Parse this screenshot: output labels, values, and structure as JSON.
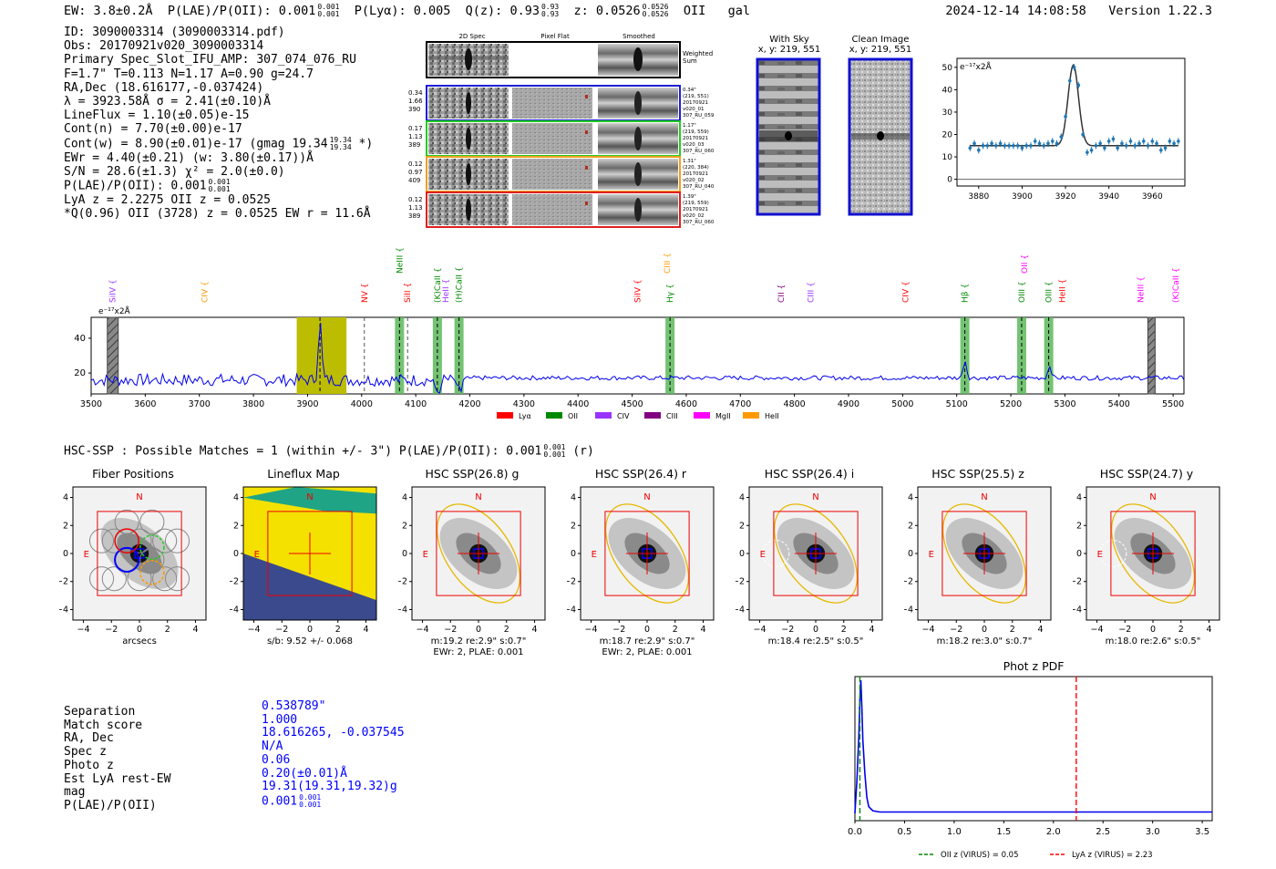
{
  "header": {
    "ew": "EW: 3.8±0.2Å",
    "plae_label": "P(LAE)/P(OII): 0.001",
    "plae_hi": "0.001",
    "plae_lo": "0.001",
    "plya": "P(Lyα): 0.005",
    "qz_label": "Q(z): 0.93",
    "qz_hi": "0.93",
    "qz_lo": "0.93",
    "z_label": "z: 0.0526",
    "z_hi": "0.0526",
    "z_lo": "0.0526",
    "z_line": "OII",
    "z_type": "gal",
    "timestamp": "2024-12-14 14:08:58",
    "version": "Version 1.22.3"
  },
  "info": {
    "id": "ID: 3090003314 (3090003314.pdf)",
    "obs": "Obs: 20170921v020_3090003314",
    "primary": "Primary Spec_Slot_IFU_AMP: 307_074_076_RU",
    "fitparams": "F=1.7\"  T=0.113  N=1.17  A=0.90  g=24.7",
    "radec": "RA,Dec (18.616177,-0.037424)",
    "lambda": "λ = 3923.58Å  σ = 2.41(±0.10)Å",
    "lineflux": "LineFlux = 1.10(±0.05)e-15",
    "contn": "Cont(n) = 7.70(±0.00)e-17",
    "contw": "Cont(w) = 8.90(±0.01)e-17 (gmag 19.34",
    "contw_hi": "19.34",
    "contw_lo": "19.34",
    "contw_end": "*)",
    "ewr": "EWr = 4.40(±0.21) (w: 3.80(±0.17))Å",
    "sn": "S/N = 28.6(±1.3)  χ² = 2.0(±0.0)",
    "plae": "P(LAE)/P(OII): 0.001",
    "plae_hi": "0.001",
    "plae_lo": "0.001",
    "lya_z": "LyA z = 2.2275  OII z = 0.0525",
    "q_line": "*Q(0.96) OII (3728) z = 0.0525  EW r = 11.6Å"
  },
  "spec2d": {
    "headers": [
      "2D Spec",
      "Pixel Flat",
      "Smoothed"
    ],
    "weighted_sum": [
      "Weighted",
      "Sum"
    ],
    "rows": [
      {
        "left": [
          "0.34",
          "1.66",
          "390"
        ],
        "right": [
          "0.34\"",
          "(219, 551)",
          "20170921",
          "v020_01",
          "307_RU_059"
        ],
        "color": "#1f1fd6"
      },
      {
        "left": [
          "0.17",
          "1.13",
          "389"
        ],
        "right": [
          "1.17\"",
          "(219, 559)",
          "20170921",
          "v020_03",
          "307_RU_060"
        ],
        "color": "#22cc22"
      },
      {
        "left": [
          "0.12",
          "0.97",
          "409"
        ],
        "right": [
          "1.31\"",
          "(220, 384)",
          "20170921",
          "v020_02",
          "307_RU_040"
        ],
        "color": "#f0a020"
      },
      {
        "left": [
          "0.12",
          "1.13",
          "389"
        ],
        "right": [
          "1.39\"",
          "(219, 559)",
          "20170921",
          "v020_02",
          "307_RU_060"
        ],
        "color": "#e02020"
      }
    ]
  },
  "sky": {
    "with_sky_title": "With Sky",
    "with_sky_xy": "x, y: 219, 551",
    "clean_title": "Clean Image",
    "clean_xy": "x, y: 219, 551"
  },
  "hsc": {
    "title": "HSC-SSP : Possible Matches = 1 (within +/- 3\")  P(LAE)/P(OII): 0.001",
    "plae_hi": "0.001",
    "plae_lo": "0.001",
    "suffix": "(r)"
  },
  "thumbnails": [
    {
      "title": "Fiber Positions",
      "caption1": "arcsecs",
      "caption2": ""
    },
    {
      "title": "Lineflux Map",
      "caption1": "s/b: 9.52 +/- 0.068",
      "caption2": ""
    },
    {
      "title": "HSC SSP(26.8) g",
      "caption1": "m:19.2  re:2.9\"  s:0.7\"",
      "caption2": "EWr: 2, PLAE: 0.001"
    },
    {
      "title": "HSC SSP(26.4) r",
      "caption1": "m:18.7  re:2.9\"  s:0.7\"",
      "caption2": "EWr: 2, PLAE: 0.001"
    },
    {
      "title": "HSC SSP(26.4) i",
      "caption1": "m:18.4  re:2.5\"  s:0.5\"",
      "caption2": ""
    },
    {
      "title": "HSC SSP(25.5) z",
      "caption1": "m:18.2  re:3.0\"  s:0.7\"",
      "caption2": ""
    },
    {
      "title": "HSC SSP(24.7) y",
      "caption1": "m:18.0  re:2.6\"  s:0.5\"",
      "caption2": ""
    }
  ],
  "thumb_axis": {
    "ticks": [
      "4",
      "2",
      "0",
      "−2",
      "−4"
    ],
    "xticks": [
      "−4",
      "−2",
      "0",
      "2",
      "4"
    ],
    "n_label": "N",
    "e_label": "E"
  },
  "match": {
    "labels": [
      "Separation",
      "Match score",
      "RA, Dec",
      "Spec z",
      "Photo z",
      "Est LyA rest-EW",
      "mag",
      "P(LAE)/P(OII)"
    ],
    "values": [
      "0.538789\"",
      "1.000",
      "18.616265, -0.037545",
      "N/A",
      "0.06",
      "0.20(±0.01)Å",
      "19.31(19.31,19.32)g",
      "0.001"
    ],
    "plae_hi": "0.001",
    "plae_lo": "0.001"
  },
  "chart_data": [
    {
      "type": "line",
      "name": "line-fit",
      "ylabel": "e⁻¹⁷x2Å",
      "xlim": [
        3870,
        3975
      ],
      "ylim": [
        -3,
        54
      ],
      "xticks": [
        3880,
        3900,
        3920,
        3940,
        3960
      ],
      "yticks": [
        0,
        10,
        20,
        30,
        40,
        50
      ],
      "fit": {
        "center": 3923.6,
        "sigma": 2.41,
        "peak": 51,
        "baseline": 15
      },
      "points_x": [
        3876,
        3878,
        3880,
        3882,
        3884,
        3886,
        3888,
        3890,
        3892,
        3894,
        3896,
        3898,
        3900,
        3902,
        3904,
        3906,
        3908,
        3910,
        3912,
        3914,
        3916,
        3918,
        3920,
        3922,
        3924,
        3926,
        3928,
        3930,
        3932,
        3934,
        3936,
        3938,
        3940,
        3942,
        3944,
        3946,
        3948,
        3950,
        3952,
        3954,
        3956,
        3958,
        3960,
        3962,
        3964,
        3966,
        3968,
        3970,
        3972
      ],
      "points_y": [
        14,
        16,
        13,
        15,
        15,
        16,
        15,
        16,
        15,
        15,
        15,
        15,
        14,
        15,
        15,
        17,
        16,
        15,
        16,
        17,
        16,
        19,
        28,
        44,
        50,
        42,
        20,
        12,
        13,
        15,
        16,
        14,
        17,
        18,
        14,
        16,
        15,
        17,
        15,
        16,
        17,
        15,
        17,
        16,
        13,
        14,
        17,
        16,
        17
      ]
    },
    {
      "type": "line",
      "name": "spectrum",
      "ylabel": "e⁻¹⁷x2Å",
      "xlim": [
        3500,
        5520
      ],
      "ylim": [
        8,
        52
      ],
      "xticks": [
        3500,
        3600,
        3700,
        3800,
        3900,
        4000,
        4100,
        4200,
        4300,
        4400,
        4500,
        4600,
        4700,
        4800,
        4900,
        5000,
        5100,
        5200,
        5300,
        5400,
        5500
      ],
      "yticks": [
        20,
        40
      ],
      "emission_lines": [
        {
          "label": "SiIV",
          "x": 3540,
          "color": "#9933ff",
          "hatched": true
        },
        {
          "label": "CIV",
          "x": 3710,
          "color": "#ff9900"
        },
        {
          "label": "NV",
          "x": 4005,
          "color": "#ff0000"
        },
        {
          "label": "NeIII",
          "x": 4070,
          "color": "#008800",
          "high": true
        },
        {
          "label": "SiII",
          "x": 4085,
          "color": "#ff0000"
        },
        {
          "label": "(K)CaII",
          "x": 4140,
          "color": "#008800"
        },
        {
          "label": "HeII",
          "x": 4155,
          "color": "#9933ff"
        },
        {
          "label": "(H)CaII",
          "x": 4180,
          "color": "#008800"
        },
        {
          "label": "SiIV",
          "x": 4510,
          "color": "#ff0000"
        },
        {
          "label": "CIII",
          "x": 4565,
          "color": "#ff9900",
          "high": true
        },
        {
          "label": "Hγ",
          "x": 4570,
          "color": "#008800"
        },
        {
          "label": "CII",
          "x": 4775,
          "color": "#800080"
        },
        {
          "label": "CIII",
          "x": 4830,
          "color": "#9933ff"
        },
        {
          "label": "CIV",
          "x": 5005,
          "color": "#ff0000"
        },
        {
          "label": "Hβ",
          "x": 5115,
          "color": "#008800"
        },
        {
          "label": "OII",
          "x": 5225,
          "color": "#ff00ff",
          "high": true
        },
        {
          "label": "OIII",
          "x": 5220,
          "color": "#008800"
        },
        {
          "label": "OIII",
          "x": 5270,
          "color": "#008800"
        },
        {
          "label": "HeII",
          "x": 5295,
          "color": "#ff0000"
        },
        {
          "label": "NeIII",
          "x": 5440,
          "color": "#ff00ff"
        },
        {
          "label": "(K)CaII",
          "x": 5505,
          "color": "#ff00ff"
        }
      ],
      "legend": [
        {
          "label": "Lyα",
          "color": "#ff0000"
        },
        {
          "label": "OII",
          "color": "#008800"
        },
        {
          "label": "CIV",
          "color": "#9933ff"
        },
        {
          "label": "CIII",
          "color": "#800080"
        },
        {
          "label": "MgII",
          "color": "#ff00ff"
        },
        {
          "label": "HeII",
          "color": "#ff9900"
        }
      ],
      "peaks": [
        {
          "x": 3923,
          "height": 49
        },
        {
          "x": 5115,
          "height": 26
        },
        {
          "x": 5272,
          "height": 23
        }
      ],
      "baseline": 16
    },
    {
      "type": "line",
      "name": "phot-z-pdf",
      "title": "Phot z PDF",
      "xlim": [
        0,
        3.6
      ],
      "xticks": [
        0.0,
        0.5,
        1.0,
        1.5,
        2.0,
        2.5,
        3.0,
        3.5
      ],
      "curve_x": [
        0,
        0.02,
        0.04,
        0.05,
        0.06,
        0.07,
        0.08,
        0.1,
        0.12,
        0.14,
        0.18,
        0.25,
        0.5,
        1,
        2,
        3,
        3.6
      ],
      "curve_y": [
        0.0,
        0.25,
        0.6,
        0.85,
        1.0,
        0.8,
        0.55,
        0.3,
        0.12,
        0.05,
        0.02,
        0.01,
        0.01,
        0.01,
        0.01,
        0.01,
        0.01
      ],
      "vlines": [
        {
          "x": 0.05,
          "color": "#008800",
          "label": "OII z (VIRUS) = 0.05"
        },
        {
          "x": 2.23,
          "color": "#ff0000",
          "label": "LyA z (VIRUS) = 2.23"
        }
      ]
    }
  ]
}
